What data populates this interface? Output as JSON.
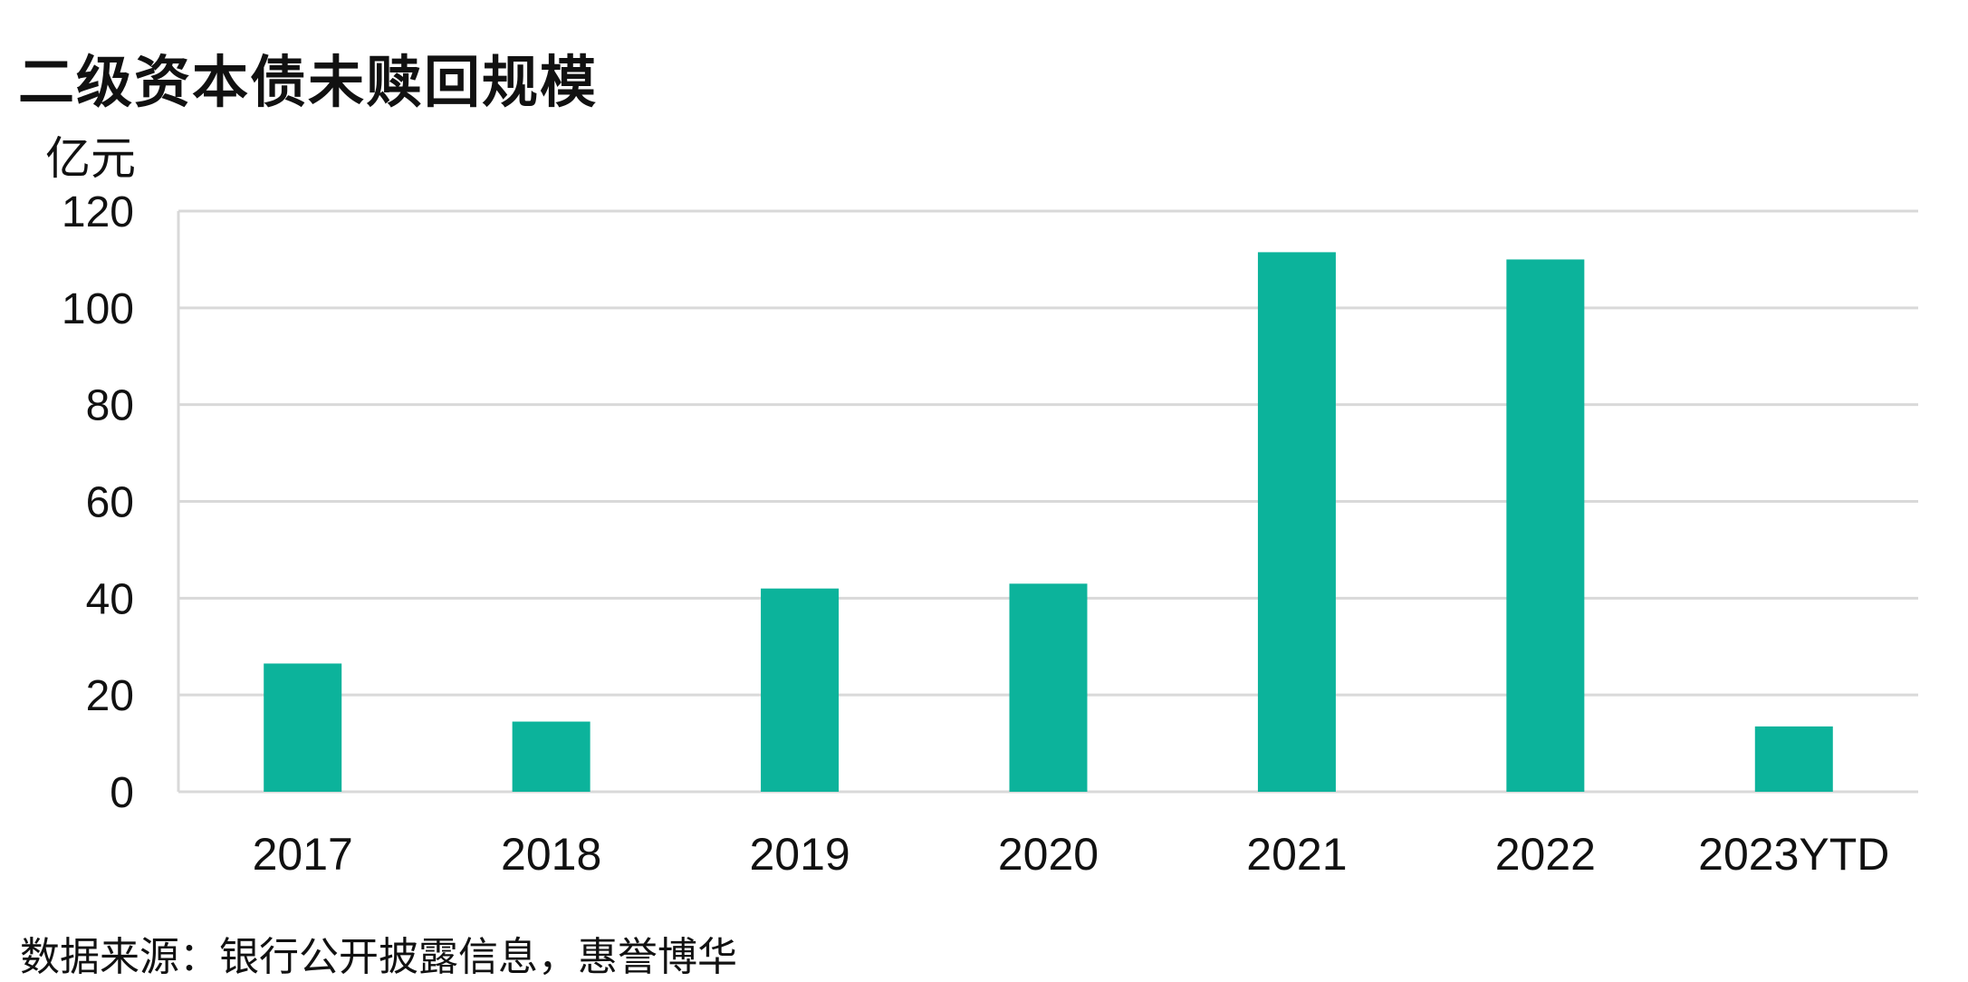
{
  "title": "二级资本债未赎回规模",
  "unit": "亿元",
  "source": "数据来源：银行公开披露信息，惠誉博华",
  "colors": {
    "bar": "#0cb39b",
    "grid": "#d9d9d9",
    "axis": "#d9d9d9",
    "text": "#111111"
  },
  "chart_data": {
    "type": "bar",
    "categories": [
      "2017",
      "2018",
      "2019",
      "2020",
      "2021",
      "2022",
      "2023YTD"
    ],
    "values": [
      26.5,
      14.5,
      42,
      43,
      111.5,
      110,
      13.5
    ],
    "ylim": [
      0,
      120
    ],
    "yticks": [
      0,
      20,
      40,
      60,
      80,
      100,
      120
    ],
    "ytick_labels": [
      "0",
      "20",
      "40",
      "60",
      "80",
      "100",
      "120"
    ],
    "grid": true,
    "legend": "none"
  }
}
